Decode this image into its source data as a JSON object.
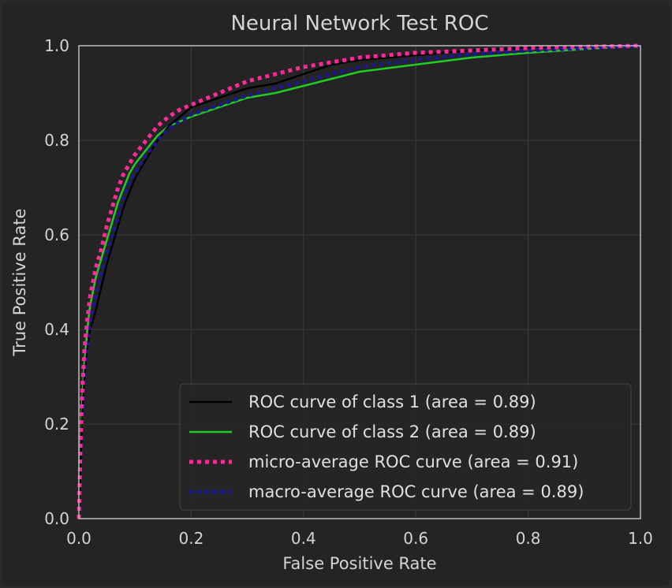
{
  "chart_data": {
    "type": "line",
    "title": "Neural Network Test ROC",
    "xlabel": "False Positive Rate",
    "ylabel": "True Positive Rate",
    "xlim": [
      0.0,
      1.0
    ],
    "ylim": [
      0.0,
      1.0
    ],
    "x_ticks": [
      "0.0",
      "0.2",
      "0.4",
      "0.6",
      "0.8",
      "1.0"
    ],
    "y_ticks": [
      "0.0",
      "0.2",
      "0.4",
      "0.6",
      "0.8",
      "1.0"
    ],
    "grid": true,
    "legend_position": "lower-right",
    "series": [
      {
        "name": "ROC curve of class 1 (area = 0.89)",
        "color": "#000000",
        "style": "solid",
        "x": [
          0.0,
          0.003,
          0.006,
          0.01,
          0.015,
          0.02,
          0.03,
          0.04,
          0.05,
          0.06,
          0.07,
          0.08,
          0.09,
          0.1,
          0.12,
          0.14,
          0.16,
          0.18,
          0.2,
          0.25,
          0.3,
          0.35,
          0.4,
          0.45,
          0.5,
          0.6,
          0.7,
          0.8,
          0.9,
          1.0
        ],
        "y": [
          0.0,
          0.12,
          0.22,
          0.3,
          0.36,
          0.4,
          0.44,
          0.49,
          0.54,
          0.58,
          0.62,
          0.66,
          0.69,
          0.72,
          0.76,
          0.8,
          0.83,
          0.85,
          0.87,
          0.89,
          0.91,
          0.92,
          0.94,
          0.96,
          0.97,
          0.98,
          0.99,
          0.995,
          0.998,
          1.0
        ]
      },
      {
        "name": "ROC curve of class 2 (area = 0.89)",
        "color": "#22cc22",
        "style": "solid",
        "x": [
          0.0,
          0.003,
          0.006,
          0.01,
          0.015,
          0.02,
          0.03,
          0.04,
          0.05,
          0.06,
          0.07,
          0.08,
          0.09,
          0.1,
          0.12,
          0.14,
          0.16,
          0.18,
          0.2,
          0.25,
          0.3,
          0.35,
          0.4,
          0.45,
          0.5,
          0.6,
          0.7,
          0.8,
          0.9,
          1.0
        ],
        "y": [
          0.0,
          0.15,
          0.25,
          0.33,
          0.4,
          0.45,
          0.51,
          0.55,
          0.59,
          0.63,
          0.67,
          0.7,
          0.73,
          0.75,
          0.78,
          0.81,
          0.83,
          0.84,
          0.85,
          0.87,
          0.89,
          0.9,
          0.915,
          0.93,
          0.945,
          0.96,
          0.975,
          0.985,
          0.993,
          1.0
        ]
      },
      {
        "name": "micro-average ROC curve (area = 0.91)",
        "color": "#ff2a9a",
        "style": "dotted",
        "x": [
          0.0,
          0.003,
          0.006,
          0.01,
          0.015,
          0.02,
          0.03,
          0.04,
          0.05,
          0.06,
          0.07,
          0.08,
          0.09,
          0.1,
          0.12,
          0.14,
          0.16,
          0.18,
          0.2,
          0.25,
          0.3,
          0.35,
          0.4,
          0.45,
          0.5,
          0.6,
          0.7,
          0.8,
          0.9,
          1.0
        ],
        "y": [
          0.0,
          0.16,
          0.27,
          0.36,
          0.42,
          0.47,
          0.53,
          0.57,
          0.62,
          0.66,
          0.7,
          0.73,
          0.75,
          0.77,
          0.8,
          0.83,
          0.85,
          0.865,
          0.875,
          0.9,
          0.925,
          0.94,
          0.955,
          0.965,
          0.975,
          0.985,
          0.99,
          0.995,
          0.998,
          1.0
        ]
      },
      {
        "name": "macro-average ROC curve (area = 0.89)",
        "color": "#1a1a8c",
        "style": "dotted",
        "x": [
          0.0,
          0.003,
          0.006,
          0.01,
          0.015,
          0.02,
          0.03,
          0.04,
          0.05,
          0.06,
          0.07,
          0.08,
          0.09,
          0.1,
          0.12,
          0.14,
          0.16,
          0.18,
          0.2,
          0.25,
          0.3,
          0.35,
          0.4,
          0.45,
          0.5,
          0.6,
          0.7,
          0.8,
          0.9,
          1.0
        ],
        "y": [
          0.0,
          0.13,
          0.23,
          0.31,
          0.37,
          0.42,
          0.47,
          0.52,
          0.56,
          0.6,
          0.64,
          0.68,
          0.71,
          0.73,
          0.77,
          0.8,
          0.825,
          0.84,
          0.855,
          0.875,
          0.895,
          0.91,
          0.925,
          0.94,
          0.955,
          0.97,
          0.982,
          0.99,
          0.995,
          1.0
        ]
      }
    ]
  },
  "colors": {
    "background": "#242424",
    "grid": "#3c3c3c",
    "axes_edge": "#bdbdbd",
    "text": "#d4d4d4",
    "legend_bg": "#262626",
    "legend_edge": "#444444"
  }
}
